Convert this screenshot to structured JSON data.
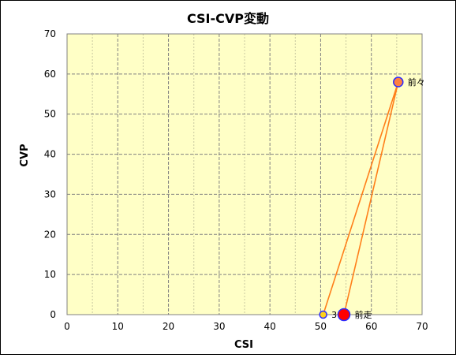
{
  "chart_data": {
    "type": "scatter",
    "title": "CSI-CVP変動",
    "xlabel": "CSI",
    "ylabel": "CVP",
    "xlim": [
      0,
      70
    ],
    "ylim": [
      0,
      70
    ],
    "x_ticks": [
      0,
      10,
      20,
      30,
      40,
      50,
      60,
      70
    ],
    "y_ticks": [
      0,
      10,
      20,
      30,
      40,
      50,
      60,
      70
    ],
    "grid": true,
    "minor_grid_x": true,
    "plot_background": "#ffffc6",
    "line_color": "#ff7f1a",
    "marker_edge_color": "#2b2bff",
    "points": [
      {
        "label": "3",
        "x": 50.5,
        "y": 0,
        "color": "#ffd11a",
        "size": "small"
      },
      {
        "label": "前々",
        "x": 65.3,
        "y": 58,
        "color": "#ff8040",
        "size": "medium"
      },
      {
        "label": "前走",
        "x": 54.6,
        "y": 0,
        "color": "#ff0000",
        "size": "large"
      }
    ],
    "path_order": [
      0,
      1,
      2
    ]
  }
}
